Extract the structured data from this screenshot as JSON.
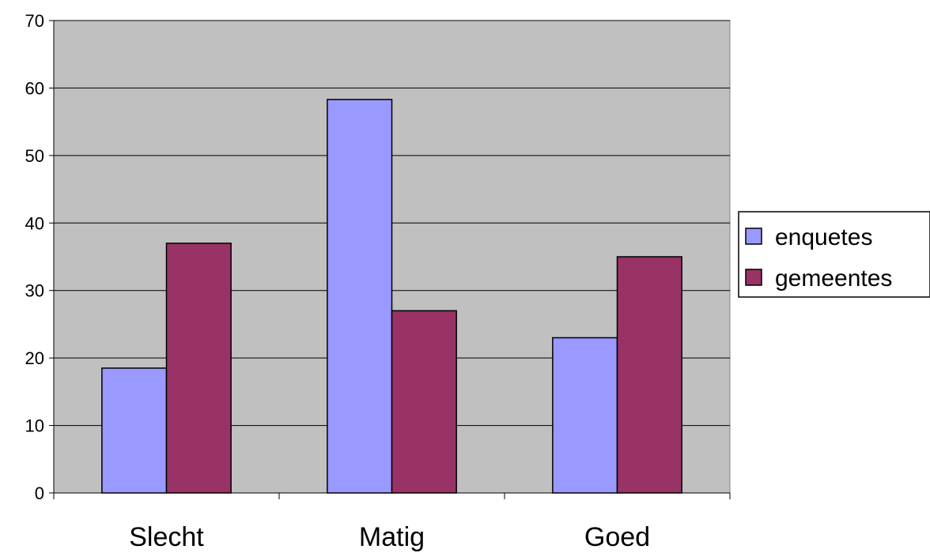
{
  "chart_data": {
    "type": "bar",
    "categories": [
      "Slecht",
      "Matig",
      "Goed"
    ],
    "series": [
      {
        "name": "enquetes",
        "values": [
          18.5,
          58.3,
          23
        ],
        "color": "#9999ff"
      },
      {
        "name": "gemeentes",
        "values": [
          37,
          27,
          35
        ],
        "color": "#993366"
      }
    ],
    "title": "",
    "xlabel": "",
    "ylabel": "",
    "ylim": [
      0,
      70
    ],
    "yticks": [
      0,
      10,
      20,
      30,
      40,
      50,
      60,
      70
    ],
    "grid": true,
    "plot_background": "#c0c0c0",
    "legend_position": "right"
  }
}
